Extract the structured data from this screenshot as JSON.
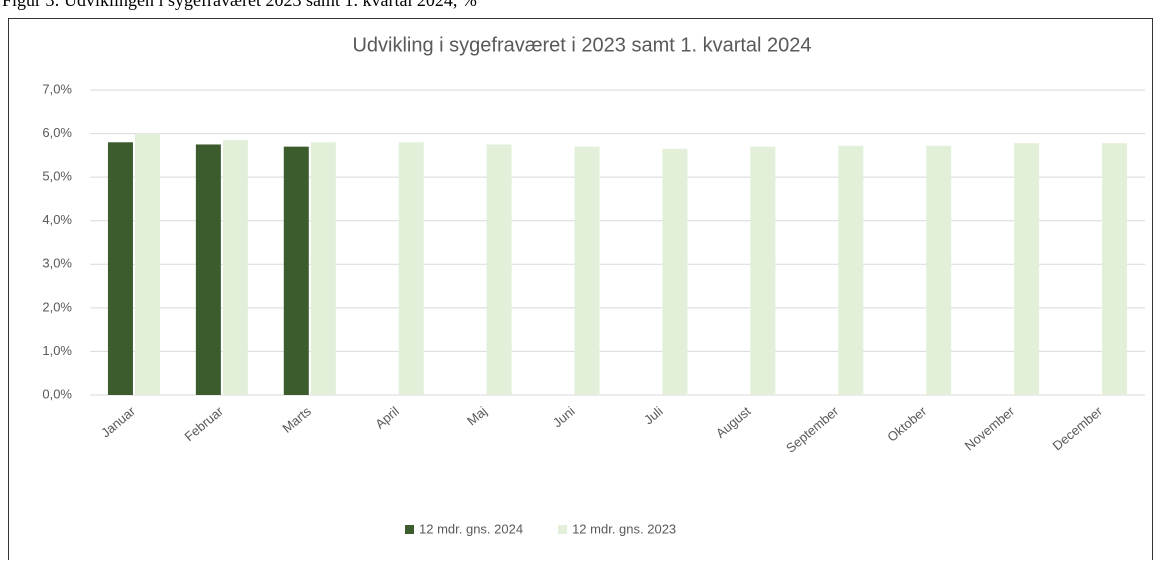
{
  "caption": "Figur 3: Udviklingen i sygefraværet 2023 samt 1. kvartal 2024, %",
  "chart_data": {
    "type": "bar",
    "title": "Udvikling i sygefraværet i 2023 samt 1. kvartal 2024",
    "categories": [
      "Januar",
      "Februar",
      "Marts",
      "April",
      "Maj",
      "Juni",
      "Juli",
      "August",
      "September",
      "Oktober",
      "November",
      "December"
    ],
    "series": [
      {
        "name": "12 mdr. gns. 2024",
        "color": "#3d5c2e",
        "values": [
          5.8,
          5.75,
          5.7,
          null,
          null,
          null,
          null,
          null,
          null,
          null,
          null,
          null
        ]
      },
      {
        "name": "12 mdr. gns. 2023",
        "color": "#e2efd9",
        "values": [
          6.0,
          5.85,
          5.8,
          5.8,
          5.75,
          5.7,
          5.65,
          5.7,
          5.72,
          5.72,
          5.78,
          5.78
        ]
      }
    ],
    "ylim": [
      0,
      7
    ],
    "yticks": [
      {
        "value": 0,
        "label": "0,0%"
      },
      {
        "value": 1,
        "label": "1,0%"
      },
      {
        "value": 2,
        "label": "2,0%"
      },
      {
        "value": 3,
        "label": "3,0%"
      },
      {
        "value": 4,
        "label": "4,0%"
      },
      {
        "value": 5,
        "label": "5,0%"
      },
      {
        "value": 6,
        "label": "6,0%"
      },
      {
        "value": 7,
        "label": "7,0%"
      }
    ],
    "grid": true,
    "legend": "bottom"
  }
}
